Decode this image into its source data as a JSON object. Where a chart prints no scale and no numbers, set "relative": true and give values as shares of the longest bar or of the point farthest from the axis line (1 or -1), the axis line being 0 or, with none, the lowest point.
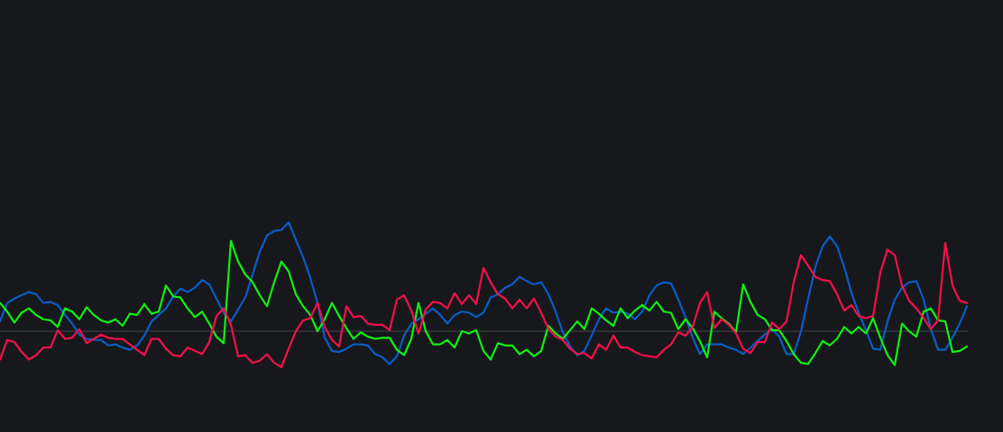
{
  "chart_data": {
    "type": "line",
    "relative": true,
    "categories": [
      null,
      null,
      null,
      null,
      null,
      null,
      null,
      null,
      null,
      null,
      null,
      null,
      null,
      null,
      null,
      null,
      null,
      null,
      null,
      null,
      null,
      null,
      null,
      null,
      null,
      null,
      null,
      null,
      null,
      null,
      null,
      null,
      null,
      null,
      null,
      null,
      null,
      null,
      null,
      null,
      null,
      null,
      null,
      null,
      null,
      null,
      null,
      null,
      null,
      null,
      null,
      null,
      null,
      null,
      null,
      null,
      null,
      null,
      null,
      null,
      null,
      null,
      null,
      null,
      null,
      null,
      null,
      null,
      null,
      null,
      null,
      null,
      null,
      null,
      null,
      null,
      null,
      null,
      null,
      null,
      null,
      null,
      null,
      null,
      null,
      null,
      null,
      null,
      null,
      null,
      null,
      null,
      null,
      null,
      null,
      null,
      null,
      null,
      null,
      null,
      null,
      null,
      null,
      null,
      null,
      null,
      null,
      null,
      null,
      null,
      null,
      null,
      null,
      null,
      null,
      null,
      null,
      null,
      null,
      null,
      null,
      null,
      null,
      null,
      null,
      null,
      null,
      null,
      null,
      null,
      null,
      null,
      null,
      null,
      null
    ],
    "series": [
      {
        "color": "#0a5cc4",
        "values": [
          0.09,
          0.26,
          0.3,
          0.33,
          0.36,
          0.34,
          0.26,
          0.27,
          0.24,
          0.15,
          0.07,
          -0.03,
          -0.07,
          -0.08,
          -0.08,
          -0.13,
          -0.12,
          -0.15,
          -0.17,
          -0.13,
          -0.04,
          0.09,
          0.15,
          0.21,
          0.32,
          0.39,
          0.36,
          0.4,
          0.47,
          0.43,
          0.3,
          0.17,
          0.09,
          0.2,
          0.31,
          0.52,
          0.73,
          0.88,
          0.92,
          0.93,
          1.0,
          0.84,
          0.68,
          0.49,
          0.26,
          -0.06,
          -0.18,
          -0.19,
          -0.16,
          -0.12,
          -0.12,
          -0.13,
          -0.21,
          -0.24,
          -0.3,
          -0.23,
          -0.04,
          0.07,
          0.11,
          0.16,
          0.21,
          0.15,
          0.07,
          0.15,
          0.18,
          0.17,
          0.13,
          0.17,
          0.31,
          0.34,
          0.4,
          0.43,
          0.5,
          0.46,
          0.43,
          0.45,
          0.34,
          0.18,
          -0.01,
          -0.14,
          -0.22,
          -0.18,
          -0.04,
          0.11,
          0.21,
          0.17,
          0.18,
          0.16,
          0.11,
          0.18,
          0.33,
          0.42,
          0.45,
          0.44,
          0.29,
          0.13,
          -0.06,
          -0.21,
          -0.12,
          -0.12,
          -0.12,
          -0.15,
          -0.17,
          -0.21,
          -0.15,
          -0.09,
          -0.03,
          0.02,
          -0.05,
          -0.21,
          -0.21,
          0,
          0.3,
          0.59,
          0.78,
          0.87,
          0.78,
          0.59,
          0.35,
          0.17,
          0.01,
          -0.16,
          -0.17,
          0.09,
          0.29,
          0.4,
          0.45,
          0.46,
          0.29,
          0.02,
          -0.17,
          -0.17,
          -0.06,
          0.07,
          0.23
        ]
      },
      {
        "color": "#12ee12",
        "values": [
          0.26,
          0.18,
          0.08,
          0.17,
          0.21,
          0.15,
          0.11,
          0.1,
          0.04,
          0.21,
          0.18,
          0.11,
          0.22,
          0.15,
          0.1,
          0.08,
          0.11,
          0.05,
          0.16,
          0.15,
          0.25,
          0.16,
          0.18,
          0.42,
          0.32,
          0.31,
          0.21,
          0.13,
          0.18,
          0.07,
          -0.05,
          -0.11,
          0.83,
          0.64,
          0.52,
          0.45,
          0.33,
          0.23,
          0.45,
          0.64,
          0.55,
          0.34,
          0.23,
          0.15,
          0,
          0.11,
          0.26,
          0.14,
          0.03,
          -0.07,
          -0.01,
          -0.05,
          -0.07,
          -0.06,
          -0.06,
          -0.17,
          -0.22,
          -0.07,
          0.26,
          0,
          -0.12,
          -0.12,
          -0.08,
          -0.15,
          0,
          -0.02,
          0.01,
          -0.18,
          -0.26,
          -0.11,
          -0.13,
          -0.13,
          -0.21,
          -0.17,
          -0.23,
          -0.18,
          0.05,
          -0.02,
          -0.07,
          0.01,
          0.09,
          0.02,
          0.21,
          0.16,
          0.1,
          0.05,
          0.21,
          0.12,
          0.19,
          0.24,
          0.19,
          0.27,
          0.18,
          0.17,
          0.02,
          0.11,
          0.03,
          -0.09,
          -0.24,
          0.18,
          0.12,
          0.07,
          -0.01,
          0.43,
          0.27,
          0.15,
          0.11,
          0.01,
          0.01,
          -0.09,
          -0.21,
          -0.29,
          -0.3,
          -0.2,
          -0.09,
          -0.13,
          -0.07,
          0.04,
          -0.02,
          0.04,
          -0.02,
          0.12,
          -0.06,
          -0.22,
          -0.31,
          0.07,
          0,
          -0.05,
          0.18,
          0.21,
          0.1,
          0.09,
          -0.19,
          -0.18,
          -0.14
        ]
      },
      {
        "color": "#f2104a",
        "values": [
          -0.26,
          -0.08,
          -0.1,
          -0.19,
          -0.26,
          -0.22,
          -0.15,
          -0.15,
          0.01,
          -0.07,
          -0.06,
          0.02,
          -0.11,
          -0.07,
          -0.03,
          -0.06,
          -0.07,
          -0.07,
          -0.12,
          -0.17,
          -0.22,
          -0.07,
          -0.07,
          -0.16,
          -0.22,
          -0.23,
          -0.15,
          -0.18,
          -0.21,
          -0.1,
          0.14,
          0.21,
          0.06,
          -0.23,
          -0.22,
          -0.29,
          -0.27,
          -0.21,
          -0.29,
          -0.33,
          -0.16,
          0,
          0.1,
          0.12,
          0.26,
          0.04,
          -0.08,
          -0.14,
          0.23,
          0.13,
          0.14,
          0.07,
          0.06,
          0.06,
          0.01,
          0.29,
          0.33,
          0.19,
          -0.02,
          0.2,
          0.27,
          0.26,
          0.21,
          0.35,
          0.25,
          0.33,
          0.25,
          0.58,
          0.45,
          0.34,
          0.3,
          0.21,
          0.29,
          0.21,
          0.3,
          0.17,
          0.02,
          -0.05,
          -0.08,
          -0.16,
          -0.21,
          -0.2,
          -0.25,
          -0.12,
          -0.17,
          -0.04,
          -0.15,
          -0.15,
          -0.19,
          -0.22,
          -0.23,
          -0.24,
          -0.17,
          -0.12,
          -0.01,
          -0.04,
          0.04,
          0.26,
          0.36,
          0.03,
          0.11,
          0.06,
          -0.02,
          -0.16,
          -0.2,
          -0.1,
          -0.1,
          0.08,
          0.02,
          0.09,
          0.45,
          0.7,
          0.6,
          0.5,
          0.47,
          0.46,
          0.34,
          0.19,
          0.24,
          0.14,
          0.12,
          0.14,
          0.54,
          0.75,
          0.7,
          0.42,
          0.28,
          0.21,
          0.12,
          0.02,
          0.1,
          0.81,
          0.42,
          0.28,
          0.26
        ]
      }
    ]
  }
}
